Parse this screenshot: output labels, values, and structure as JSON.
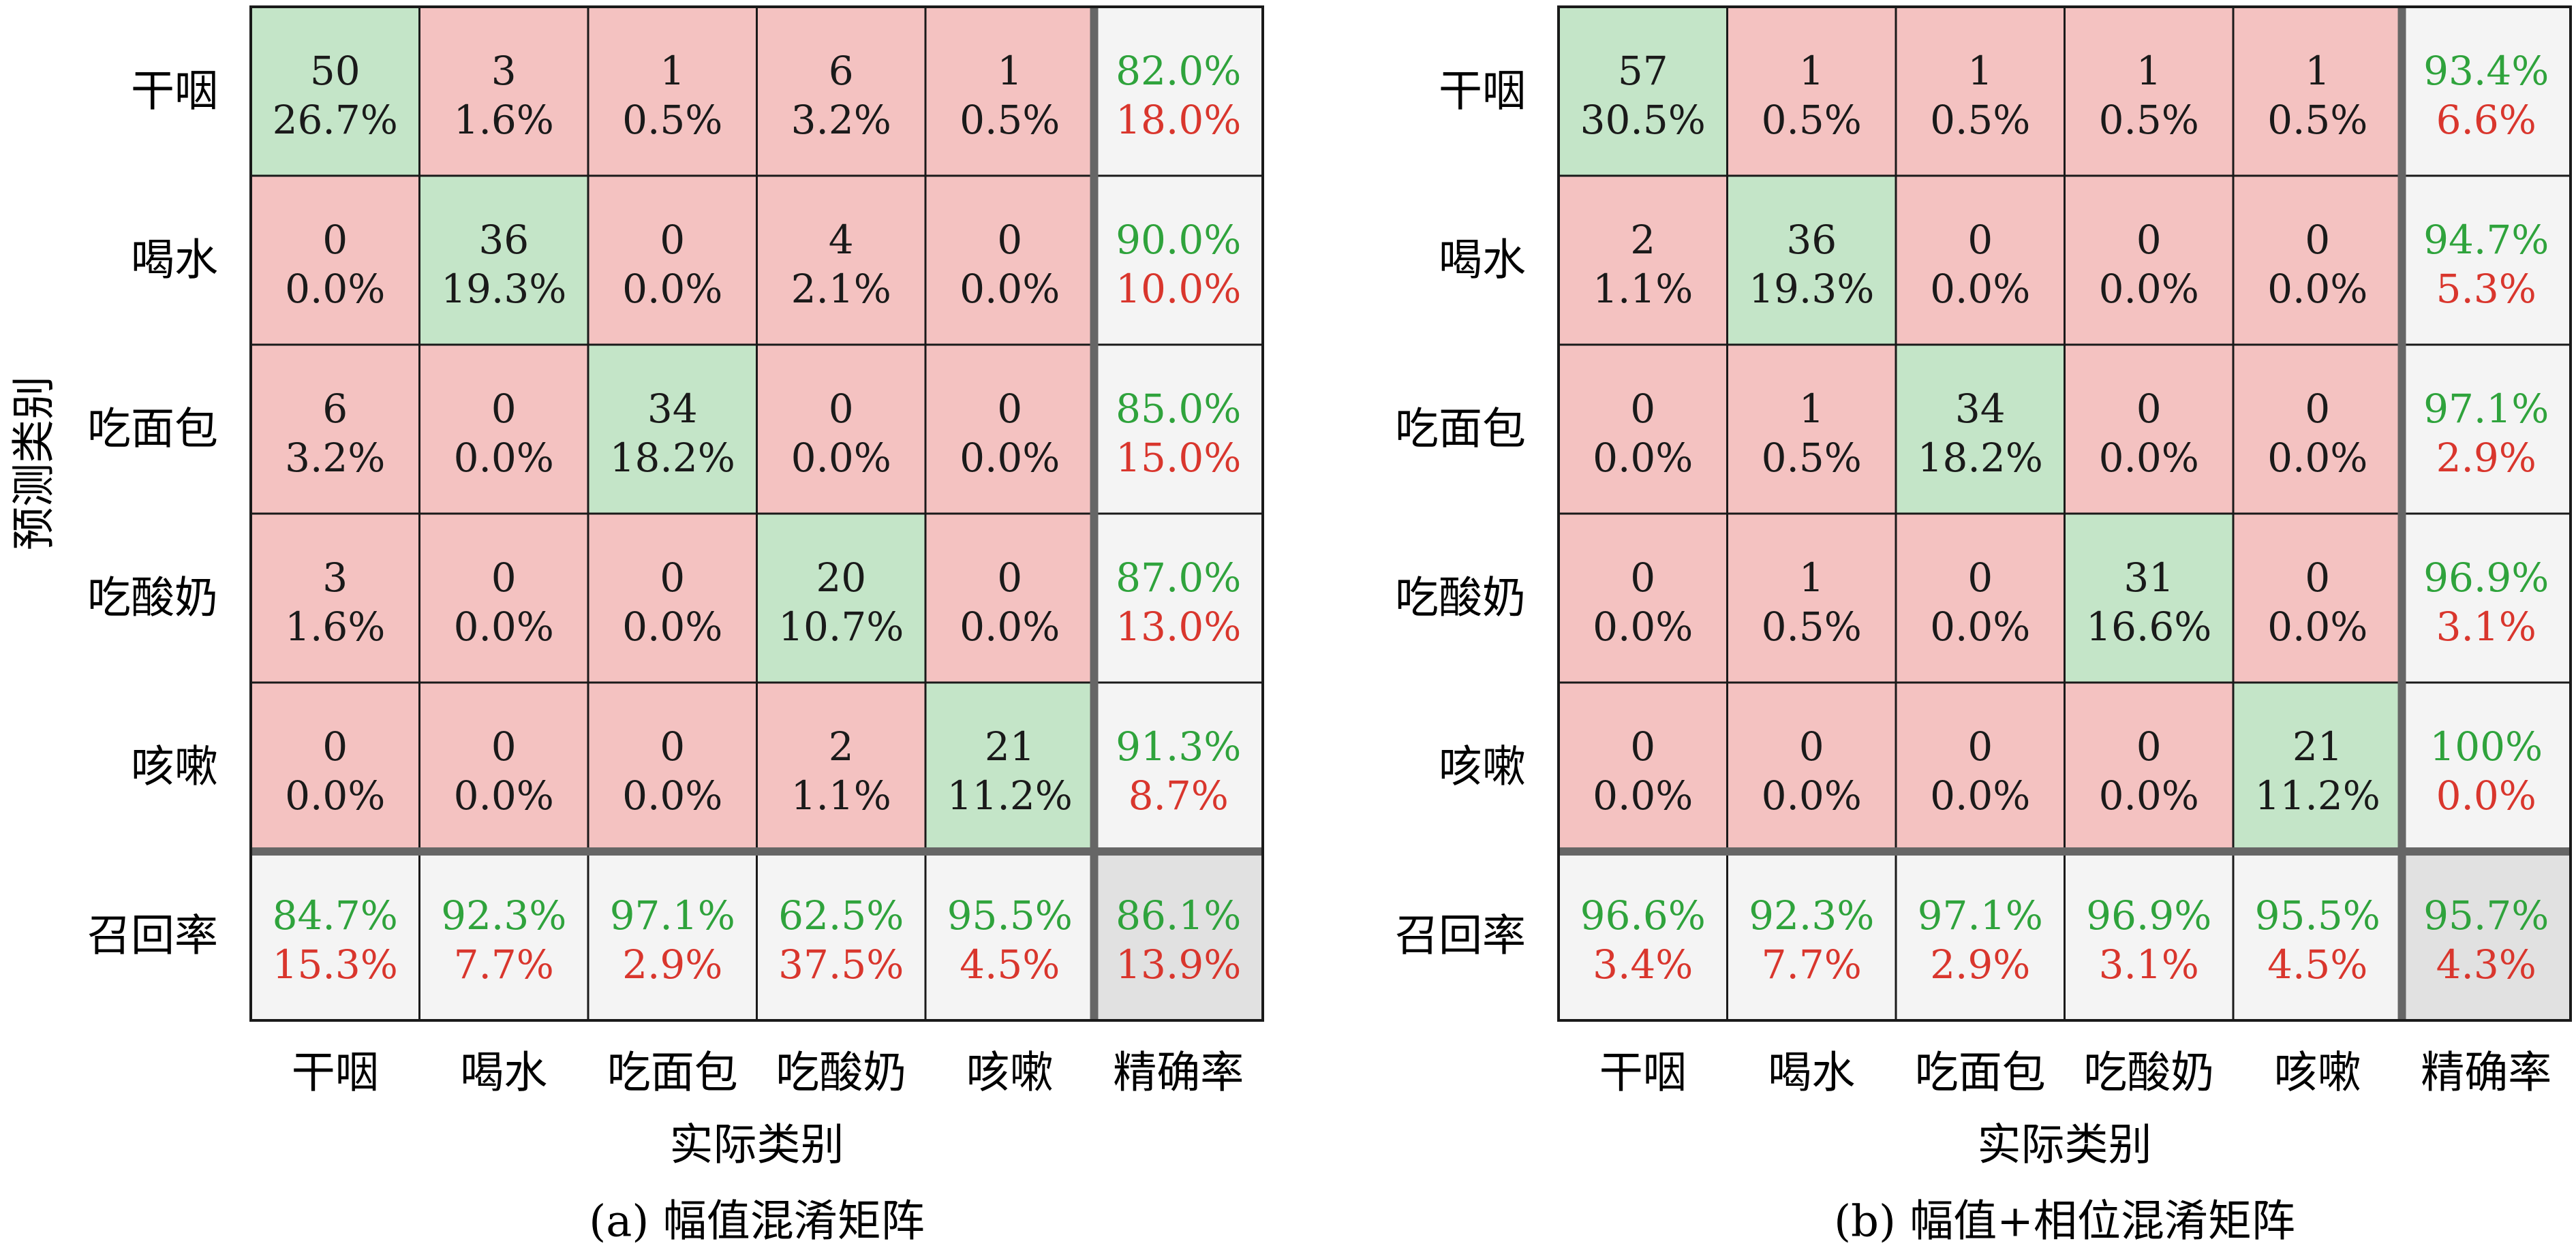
{
  "colors": {
    "correct_fill": "#c4e5c8",
    "wrong_fill": "#f4c2c1",
    "summary_fill": "#f4f4f4",
    "overall_fill": "#e1e1e1",
    "good_text": "#2fa33c",
    "bad_text": "#d9362d",
    "grid_line": "#1a1a1a",
    "separator": "#666666"
  },
  "chart_data": [
    {
      "type": "heatmap",
      "caption": "(a) 幅值混淆矩阵",
      "xlabel": "实际类别",
      "ylabel": "预测类别",
      "row_labels": [
        "干咽",
        "喝水",
        "吃面包",
        "吃酸奶",
        "咳嗽"
      ],
      "col_labels": [
        "干咽",
        "喝水",
        "吃面包",
        "吃酸奶",
        "咳嗽"
      ],
      "precision_label": "精确率",
      "recall_label": "召回率",
      "counts": [
        [
          50,
          3,
          1,
          6,
          1
        ],
        [
          0,
          36,
          0,
          4,
          0
        ],
        [
          6,
          0,
          34,
          0,
          0
        ],
        [
          3,
          0,
          0,
          20,
          0
        ],
        [
          0,
          0,
          0,
          2,
          21
        ]
      ],
      "percents": [
        [
          "26.7%",
          "1.6%",
          "0.5%",
          "3.2%",
          "0.5%"
        ],
        [
          "0.0%",
          "19.3%",
          "0.0%",
          "2.1%",
          "0.0%"
        ],
        [
          "3.2%",
          "0.0%",
          "18.2%",
          "0.0%",
          "0.0%"
        ],
        [
          "1.6%",
          "0.0%",
          "0.0%",
          "10.7%",
          "0.0%"
        ],
        [
          "0.0%",
          "0.0%",
          "0.0%",
          "1.1%",
          "11.2%"
        ]
      ],
      "precision": [
        [
          "82.0%",
          "18.0%"
        ],
        [
          "90.0%",
          "10.0%"
        ],
        [
          "85.0%",
          "15.0%"
        ],
        [
          "87.0%",
          "13.0%"
        ],
        [
          "91.3%",
          "8.7%"
        ]
      ],
      "recall": [
        [
          "84.7%",
          "15.3%"
        ],
        [
          "92.3%",
          "7.7%"
        ],
        [
          "97.1%",
          "2.9%"
        ],
        [
          "62.5%",
          "37.5%"
        ],
        [
          "95.5%",
          "4.5%"
        ]
      ],
      "overall": [
        "86.1%",
        "13.9%"
      ]
    },
    {
      "type": "heatmap",
      "caption": "(b) 幅值+相位混淆矩阵",
      "xlabel": "实际类别",
      "ylabel": "",
      "row_labels": [
        "干咽",
        "喝水",
        "吃面包",
        "吃酸奶",
        "咳嗽"
      ],
      "col_labels": [
        "干咽",
        "喝水",
        "吃面包",
        "吃酸奶",
        "咳嗽"
      ],
      "precision_label": "精确率",
      "recall_label": "召回率",
      "counts": [
        [
          57,
          1,
          1,
          1,
          1
        ],
        [
          2,
          36,
          0,
          0,
          0
        ],
        [
          0,
          1,
          34,
          0,
          0
        ],
        [
          0,
          1,
          0,
          31,
          0
        ],
        [
          0,
          0,
          0,
          0,
          21
        ]
      ],
      "percents": [
        [
          "30.5%",
          "0.5%",
          "0.5%",
          "0.5%",
          "0.5%"
        ],
        [
          "1.1%",
          "19.3%",
          "0.0%",
          "0.0%",
          "0.0%"
        ],
        [
          "0.0%",
          "0.5%",
          "18.2%",
          "0.0%",
          "0.0%"
        ],
        [
          "0.0%",
          "0.5%",
          "0.0%",
          "16.6%",
          "0.0%"
        ],
        [
          "0.0%",
          "0.0%",
          "0.0%",
          "0.0%",
          "11.2%"
        ]
      ],
      "precision": [
        [
          "93.4%",
          "6.6%"
        ],
        [
          "94.7%",
          "5.3%"
        ],
        [
          "97.1%",
          "2.9%"
        ],
        [
          "96.9%",
          "3.1%"
        ],
        [
          "100%",
          "0.0%"
        ]
      ],
      "recall": [
        [
          "96.6%",
          "3.4%"
        ],
        [
          "92.3%",
          "7.7%"
        ],
        [
          "97.1%",
          "2.9%"
        ],
        [
          "96.9%",
          "3.1%"
        ],
        [
          "95.5%",
          "4.5%"
        ]
      ],
      "overall": [
        "95.7%",
        "4.3%"
      ]
    }
  ]
}
